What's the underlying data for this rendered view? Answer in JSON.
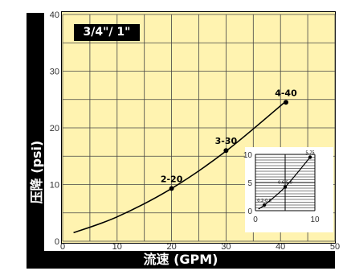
{
  "chart_data": [
    {
      "type": "line",
      "title": "3/4\"/ 1\"",
      "xlabel": "流速 (GPM)",
      "ylabel": "压降 (psi)",
      "xlim": [
        0,
        50
      ],
      "ylim": [
        0,
        40
      ],
      "x_ticks": [
        0,
        10,
        20,
        30,
        40,
        50
      ],
      "y_ticks": [
        0,
        10,
        20,
        30,
        40
      ],
      "x_tick_labels": [
        "0",
        "10",
        "20",
        "30",
        "40",
        "50"
      ],
      "y_tick_labels": [
        "0",
        "10",
        "20",
        "30",
        "40"
      ],
      "grid": true,
      "curve": {
        "x": [
          2,
          10,
          20,
          30,
          41
        ],
        "y": [
          1.5,
          4.3,
          9.3,
          15.9,
          24.7
        ]
      },
      "points": [
        {
          "label": "2-20",
          "x": 20,
          "y": 9.3
        },
        {
          "label": "3-30",
          "x": 30,
          "y": 16
        },
        {
          "label": "4-40",
          "x": 41,
          "y": 24.5
        }
      ],
      "colors": {
        "background": "#fff3b0",
        "grid": "#444444",
        "curve": "#000000"
      }
    },
    {
      "type": "line",
      "xlim": [
        0,
        10
      ],
      "ylim": [
        0,
        10
      ],
      "x_ticks": [
        0,
        5,
        10
      ],
      "y_ticks": [
        0,
        5,
        10
      ],
      "x_tick_labels": [
        "0",
        "",
        "10"
      ],
      "y_tick_labels": [
        "0",
        "5",
        "10"
      ],
      "grid": true,
      "curve": {
        "x": [
          0.5,
          1.5,
          5,
          9.2
        ],
        "y": [
          0.3,
          1,
          4.2,
          9.5
        ]
      },
      "points": [
        {
          "label": "0.2-0.8",
          "x": 1.5,
          "y": 1
        },
        {
          "label": "0.6-5.0",
          "x": 5,
          "y": 4.2
        },
        {
          "label": "5-75",
          "x": 9.2,
          "y": 9.5
        }
      ]
    }
  ]
}
